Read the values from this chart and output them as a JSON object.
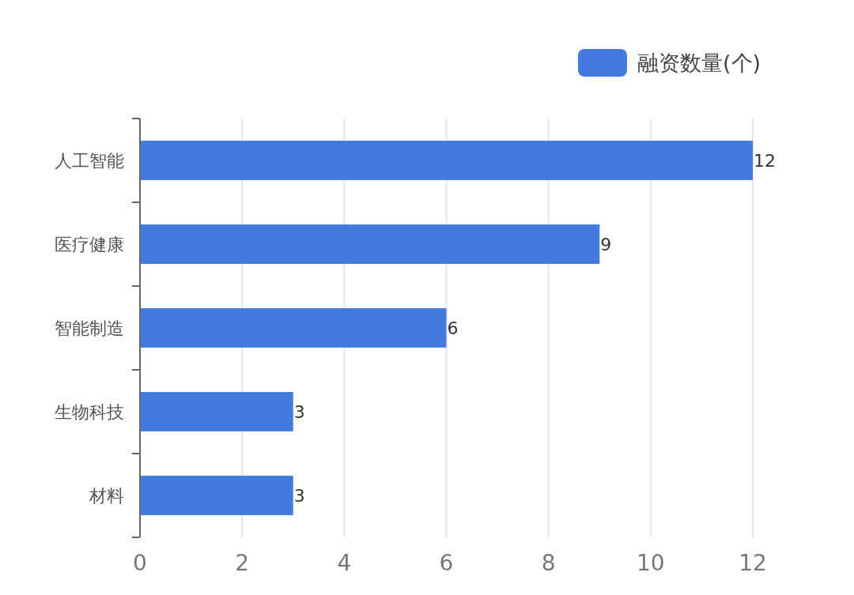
{
  "chart_data": {
    "type": "bar",
    "orientation": "horizontal",
    "categories": [
      "人工智能",
      "医疗健康",
      "智能制造",
      "生物科技",
      "材料"
    ],
    "series": [
      {
        "name": "融资数量(个)",
        "color": "#447ade",
        "values": [
          12,
          9,
          6,
          3,
          3
        ]
      }
    ],
    "xlim": [
      0,
      12
    ],
    "xticks": [
      0,
      2,
      4,
      6,
      8,
      10,
      12
    ],
    "grid": "x",
    "legend": "top right",
    "data_labels": true
  }
}
